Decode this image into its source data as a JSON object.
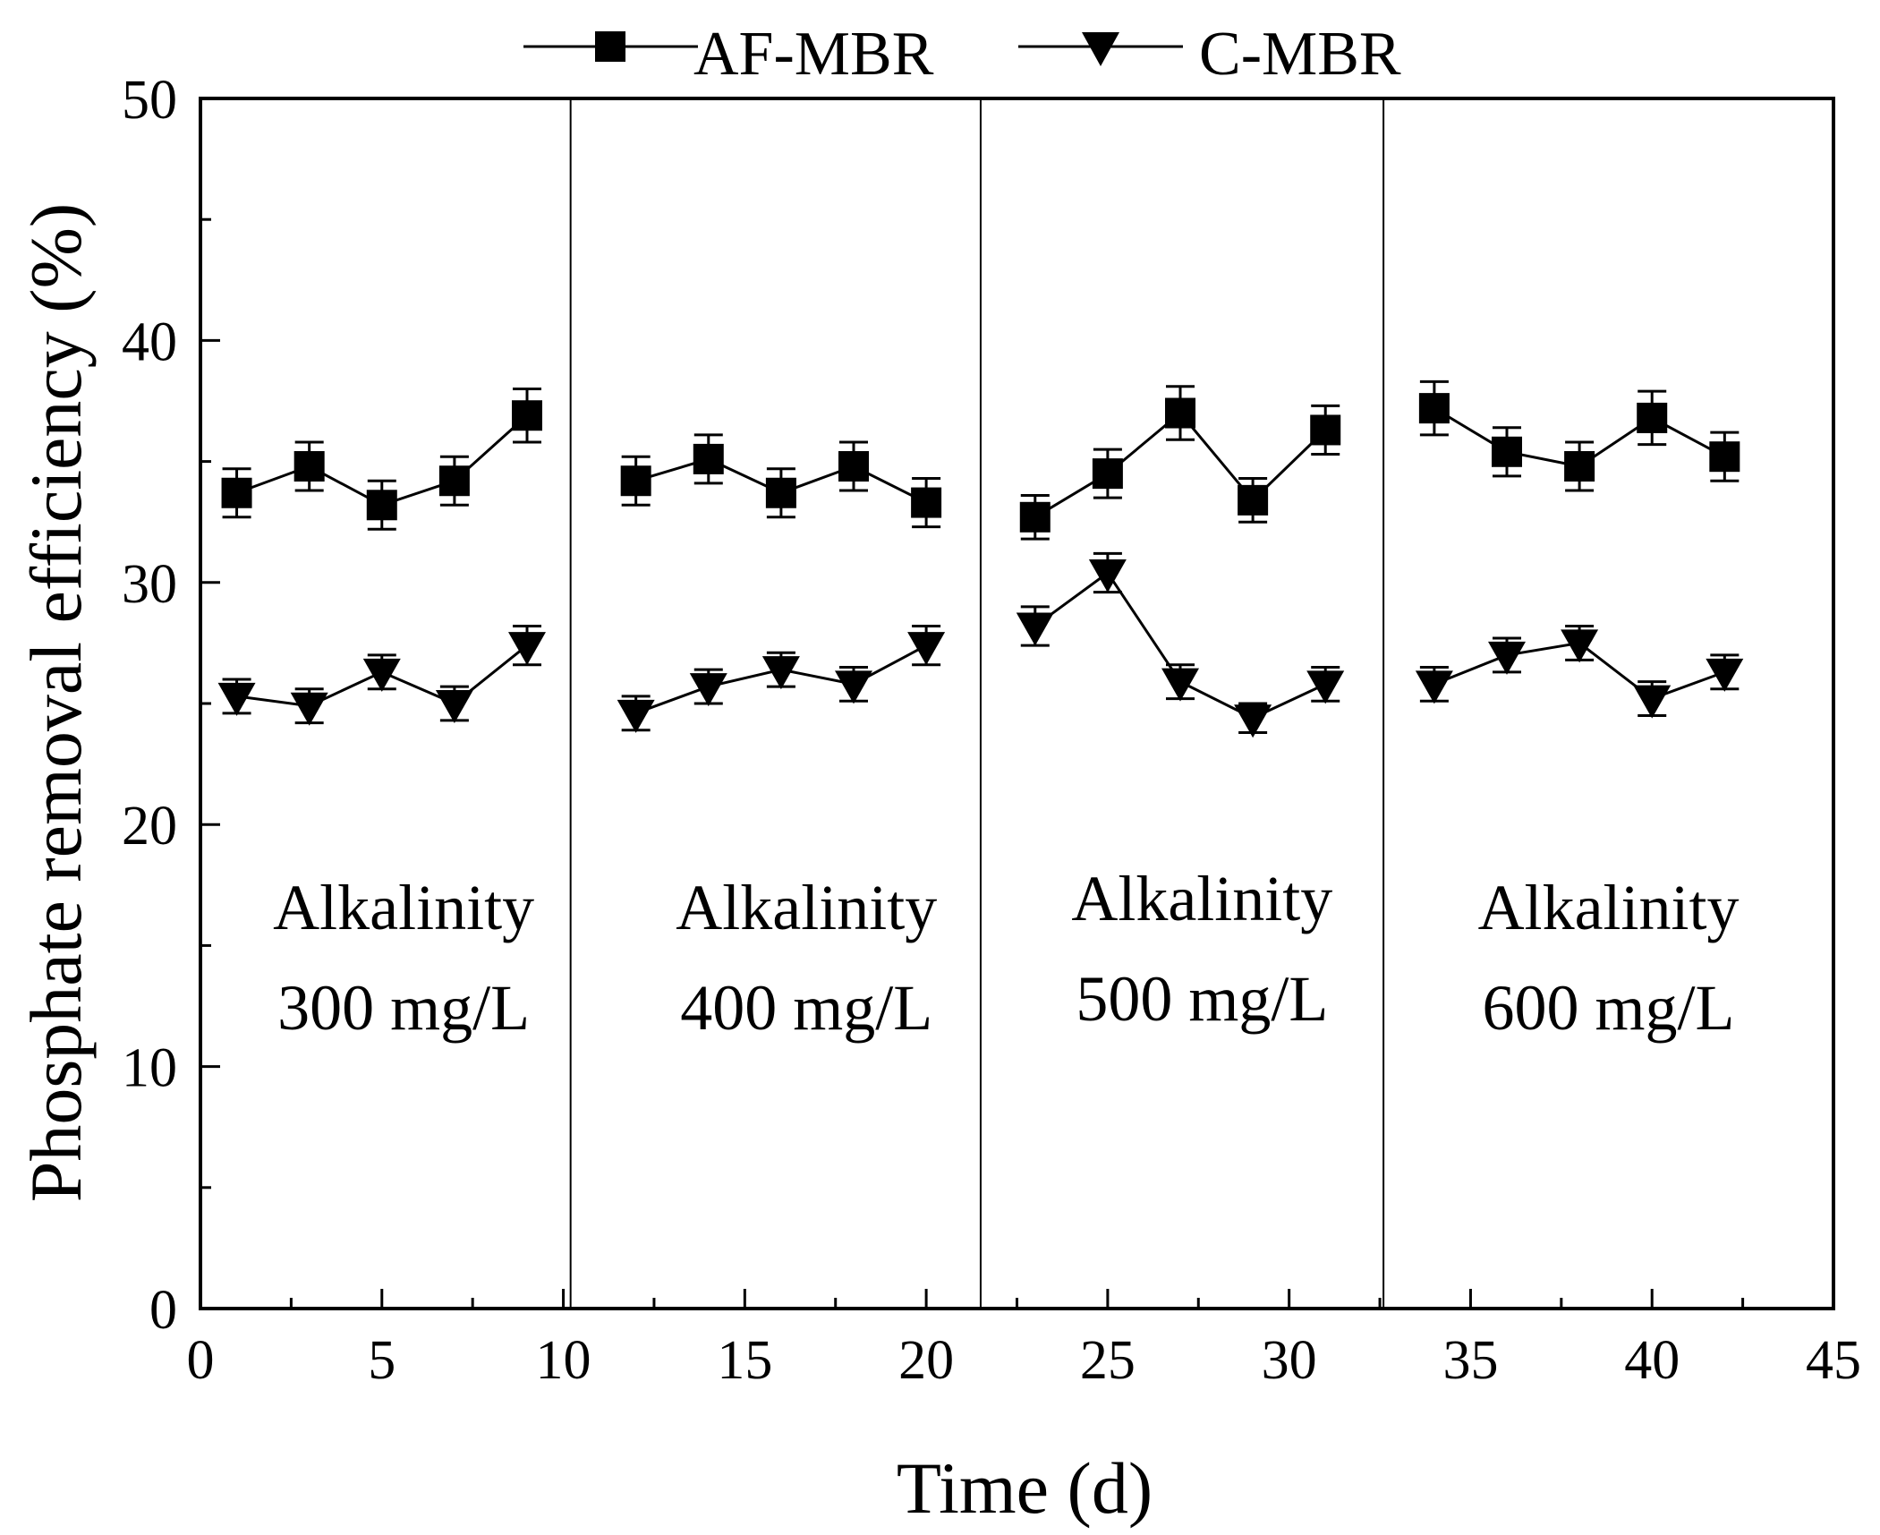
{
  "chart_data": {
    "type": "line",
    "title": "",
    "xlabel": "Time (d)",
    "ylabel": "Phosphate removal efficiency (%)",
    "xlim": [
      0,
      45
    ],
    "ylim": [
      0,
      50
    ],
    "xticks": [
      0,
      5,
      10,
      15,
      20,
      25,
      30,
      35,
      40,
      45
    ],
    "yticks": [
      0,
      10,
      20,
      30,
      40,
      50
    ],
    "dividers": [
      10.2,
      21.5,
      32.6
    ],
    "series": [
      {
        "name": "AF-MBR",
        "marker": "square",
        "segments": [
          {
            "x": [
              1,
              3,
              5,
              7,
              9
            ],
            "y": [
              33.7,
              34.8,
              33.2,
              34.2,
              36.9
            ],
            "err": [
              1.0,
              1.0,
              1.0,
              1.0,
              1.1
            ]
          },
          {
            "x": [
              12,
              14,
              16,
              18,
              20
            ],
            "y": [
              34.2,
              35.1,
              33.7,
              34.8,
              33.3
            ],
            "err": [
              1.0,
              1.0,
              1.0,
              1.0,
              1.0
            ]
          },
          {
            "x": [
              23,
              25,
              27,
              29,
              31
            ],
            "y": [
              32.7,
              34.5,
              37.0,
              33.4,
              36.3
            ],
            "err": [
              0.9,
              1.0,
              1.1,
              0.9,
              1.0
            ]
          },
          {
            "x": [
              34,
              36,
              38,
              40,
              42
            ],
            "y": [
              37.2,
              35.4,
              34.8,
              36.8,
              35.2
            ],
            "err": [
              1.1,
              1.0,
              1.0,
              1.1,
              1.0
            ]
          }
        ]
      },
      {
        "name": "C-MBR",
        "marker": "triangle-down",
        "segments": [
          {
            "x": [
              1,
              3,
              5,
              7,
              9
            ],
            "y": [
              25.3,
              24.9,
              26.3,
              25.0,
              27.4
            ],
            "err": [
              0.7,
              0.7,
              0.7,
              0.7,
              0.8
            ]
          },
          {
            "x": [
              12,
              14,
              16,
              18,
              20
            ],
            "y": [
              24.6,
              25.7,
              26.4,
              25.8,
              27.4
            ],
            "err": [
              0.7,
              0.7,
              0.7,
              0.7,
              0.8
            ]
          },
          {
            "x": [
              23,
              25,
              27,
              29,
              31
            ],
            "y": [
              28.2,
              30.4,
              25.9,
              24.4,
              25.8
            ],
            "err": [
              0.8,
              0.8,
              0.7,
              0.6,
              0.7
            ]
          },
          {
            "x": [
              34,
              36,
              38,
              40,
              42
            ],
            "y": [
              25.8,
              27.0,
              27.5,
              25.2,
              26.3
            ],
            "err": [
              0.7,
              0.7,
              0.7,
              0.7,
              0.7
            ]
          }
        ]
      }
    ],
    "annotations": [
      {
        "line1": "Alkalinity",
        "line2": "300 mg/L",
        "x": 5.6
      },
      {
        "line1": "Alkalinity",
        "line2": "400 mg/L",
        "x": 16.7
      },
      {
        "line1": "Alkalinity",
        "line2": "500 mg/L",
        "x": 27.6
      },
      {
        "line1": "Alkalinity",
        "line2": "600 mg/L",
        "x": 38.8
      }
    ],
    "legend": {
      "position": "top-center"
    }
  }
}
